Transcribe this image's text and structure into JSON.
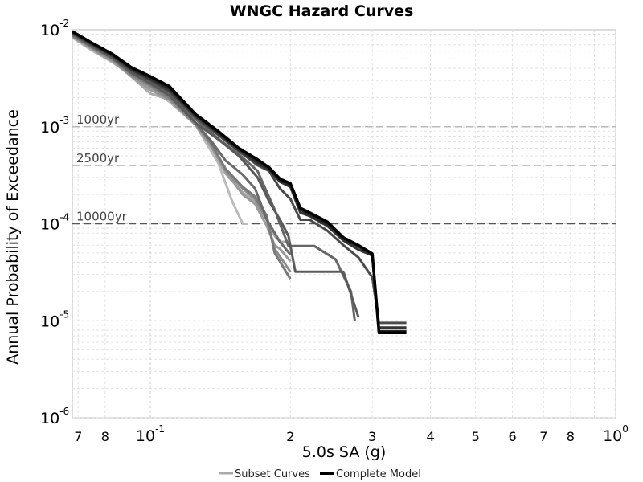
{
  "chart_data": {
    "type": "line",
    "title": "WNGC Hazard Curves",
    "xlabel": "5.0s SA (g)",
    "ylabel": "Annual Probability of Exceedance",
    "x_scale": "log",
    "y_scale": "log",
    "xlim": [
      0.068,
      1.0
    ],
    "ylim": [
      1e-06,
      0.01
    ],
    "grid": true,
    "legend_position": "bottom",
    "x_ticks": [
      {
        "value": 0.07,
        "mant": "7",
        "exp": ""
      },
      {
        "value": 0.08,
        "mant": "8",
        "exp": ""
      },
      {
        "value": 0.1,
        "mant": "10",
        "exp": "-1"
      },
      {
        "value": 0.2,
        "mant": "2",
        "exp": ""
      },
      {
        "value": 0.3,
        "mant": "3",
        "exp": ""
      },
      {
        "value": 0.4,
        "mant": "4",
        "exp": ""
      },
      {
        "value": 0.5,
        "mant": "5",
        "exp": ""
      },
      {
        "value": 0.6,
        "mant": "6",
        "exp": ""
      },
      {
        "value": 0.7,
        "mant": "7",
        "exp": ""
      },
      {
        "value": 0.8,
        "mant": "8",
        "exp": ""
      },
      {
        "value": 1.0,
        "mant": "10",
        "exp": "0"
      }
    ],
    "y_ticks": [
      {
        "value": 0.01,
        "mant": "10",
        "exp": "-2"
      },
      {
        "value": 0.001,
        "mant": "10",
        "exp": "-3"
      },
      {
        "value": 0.0001,
        "mant": "10",
        "exp": "-4"
      },
      {
        "value": 1e-05,
        "mant": "10",
        "exp": "-5"
      },
      {
        "value": 1e-06,
        "mant": "10",
        "exp": "-6"
      }
    ],
    "reference_lines": [
      {
        "label": "1000yr",
        "y": 0.001,
        "color": "#b8b8b8"
      },
      {
        "label": "2500yr",
        "y": 0.0004,
        "color": "#888888"
      },
      {
        "label": "10000yr",
        "y": 0.0001,
        "color": "#555555"
      }
    ],
    "legend": [
      {
        "label": "Subset Curves",
        "color": "#aaaaaa"
      },
      {
        "label": "Complete Model",
        "color": "#000000"
      }
    ],
    "series": [
      {
        "color": "#bbbbbb",
        "width": 3,
        "x": [
          0.068,
          0.075,
          0.083,
          0.091,
          0.1,
          0.11,
          0.125,
          0.14,
          0.15,
          0.158,
          0.162
        ],
        "y": [
          0.0083,
          0.0061,
          0.0046,
          0.0034,
          0.0025,
          0.0018,
          0.00105,
          0.00042,
          0.00017,
          0.0001,
          0.0001
        ]
      },
      {
        "color": "#aaaaaa",
        "width": 3,
        "x": [
          0.068,
          0.075,
          0.083,
          0.091,
          0.1,
          0.11,
          0.125,
          0.135,
          0.145,
          0.158,
          0.168,
          0.178,
          0.185,
          0.19,
          0.2
        ],
        "y": [
          0.0086,
          0.0064,
          0.0048,
          0.0033,
          0.0022,
          0.0019,
          0.00105,
          0.00064,
          0.00033,
          0.00021,
          0.00017,
          0.00011,
          7.5e-05,
          6.5e-05,
          6.5e-05
        ]
      },
      {
        "color": "#999999",
        "width": 3,
        "x": [
          0.068,
          0.075,
          0.083,
          0.091,
          0.1,
          0.11,
          0.125,
          0.135,
          0.145,
          0.158,
          0.168,
          0.178,
          0.185,
          0.19,
          0.2
        ],
        "y": [
          0.0085,
          0.0063,
          0.0047,
          0.0033,
          0.0024,
          0.0019,
          0.00105,
          0.00063,
          0.00035,
          0.0002,
          0.00016,
          9.5e-05,
          6e-05,
          5.5e-05,
          4.1e-05
        ]
      },
      {
        "color": "#8c8c8c",
        "width": 3,
        "x": [
          0.068,
          0.075,
          0.083,
          0.091,
          0.1,
          0.11,
          0.125,
          0.135,
          0.145,
          0.158,
          0.168,
          0.178,
          0.185,
          0.2
        ],
        "y": [
          0.0088,
          0.0065,
          0.0049,
          0.0034,
          0.0026,
          0.0019,
          0.00106,
          0.0007,
          0.00036,
          0.00023,
          0.00018,
          0.00011,
          5.5e-05,
          3.2e-05
        ]
      },
      {
        "color": "#7a7a7a",
        "width": 3,
        "x": [
          0.068,
          0.075,
          0.083,
          0.091,
          0.1,
          0.11,
          0.125,
          0.135,
          0.145,
          0.158,
          0.168,
          0.178,
          0.185,
          0.2
        ],
        "y": [
          0.0087,
          0.0066,
          0.005,
          0.0035,
          0.0027,
          0.002,
          0.0011,
          0.00068,
          0.00037,
          0.00024,
          0.00019,
          0.00012,
          5e-05,
          2.7e-05
        ]
      },
      {
        "color": "#6a6a6a",
        "width": 3,
        "x": [
          0.068,
          0.075,
          0.083,
          0.091,
          0.1,
          0.11,
          0.125,
          0.135,
          0.145,
          0.158,
          0.168,
          0.178,
          0.19,
          0.2
        ],
        "y": [
          0.0089,
          0.0067,
          0.0051,
          0.0036,
          0.0028,
          0.0021,
          0.0011,
          0.00072,
          0.00045,
          0.00032,
          0.00023,
          0.00011,
          6.5e-05,
          4.8e-05
        ]
      },
      {
        "color": "#666666",
        "width": 3,
        "x": [
          0.068,
          0.075,
          0.083,
          0.091,
          0.1,
          0.11,
          0.125,
          0.14,
          0.155,
          0.17,
          0.185,
          0.198,
          0.21,
          0.225,
          0.25,
          0.27,
          0.275
        ],
        "y": [
          0.0092,
          0.0069,
          0.0052,
          0.0037,
          0.0029,
          0.0022,
          0.0012,
          0.00075,
          0.00052,
          0.00035,
          0.00014,
          5.9e-05,
          5.9e-05,
          5.9e-05,
          4.3e-05,
          2e-05,
          1e-05
        ]
      },
      {
        "color": "#5a5a5a",
        "width": 3,
        "x": [
          0.068,
          0.075,
          0.083,
          0.091,
          0.1,
          0.11,
          0.125,
          0.14,
          0.155,
          0.17,
          0.18,
          0.19,
          0.198,
          0.205,
          0.23,
          0.25,
          0.26,
          0.28
        ],
        "y": [
          0.0091,
          0.0068,
          0.0051,
          0.0036,
          0.0028,
          0.0021,
          0.0011,
          0.00074,
          0.0005,
          0.0003,
          0.00017,
          0.00011,
          7.5e-05,
          3.2e-05,
          3.2e-05,
          3.2e-05,
          3.2e-05,
          1.1e-05
        ]
      },
      {
        "color": "#4a4a4a",
        "width": 3,
        "x": [
          0.068,
          0.075,
          0.083,
          0.091,
          0.1,
          0.11,
          0.125,
          0.14,
          0.155,
          0.17,
          0.18,
          0.19,
          0.2,
          0.21,
          0.22,
          0.24,
          0.26,
          0.28,
          0.3,
          0.31,
          0.33,
          0.355
        ],
        "y": [
          0.0093,
          0.007,
          0.0053,
          0.0038,
          0.003,
          0.0023,
          0.00125,
          0.00082,
          0.00056,
          0.0004,
          0.00035,
          0.00023,
          0.00018,
          0.00011,
          0.00011,
          8.5e-05,
          6e-05,
          4.5e-05,
          2.8e-05,
          9.5e-06,
          9.5e-06,
          9.5e-06
        ]
      },
      {
        "color": "#333333",
        "width": 3,
        "x": [
          0.068,
          0.075,
          0.083,
          0.091,
          0.1,
          0.11,
          0.125,
          0.14,
          0.155,
          0.17,
          0.18,
          0.19,
          0.2,
          0.21,
          0.22,
          0.24,
          0.26,
          0.28,
          0.3,
          0.31,
          0.33,
          0.355
        ],
        "y": [
          0.0094,
          0.0071,
          0.0054,
          0.0039,
          0.0031,
          0.0024,
          0.0013,
          0.00085,
          0.00057,
          0.00042,
          0.00036,
          0.00027,
          0.00024,
          0.00013,
          0.00012,
          9.5e-05,
          6.7e-05,
          5.4e-05,
          4.7e-05,
          8.5e-06,
          8.5e-06,
          8.5e-06
        ]
      },
      {
        "color": "#222222",
        "width": 3,
        "x": [
          0.068,
          0.075,
          0.083,
          0.091,
          0.1,
          0.11,
          0.125,
          0.14,
          0.155,
          0.17,
          0.18,
          0.19,
          0.2,
          0.21,
          0.22,
          0.24,
          0.26,
          0.28,
          0.3,
          0.31,
          0.33,
          0.355
        ],
        "y": [
          0.0095,
          0.0072,
          0.0055,
          0.004,
          0.0032,
          0.0025,
          0.00132,
          0.00088,
          0.00059,
          0.00044,
          0.00037,
          0.00028,
          0.00025,
          0.00014,
          0.000125,
          0.0001,
          7e-05,
          5.8e-05,
          4.8e-05,
          7.8e-06,
          7.8e-06,
          7.8e-06
        ]
      },
      {
        "color": "#000000",
        "width": 3.5,
        "x": [
          0.068,
          0.075,
          0.083,
          0.091,
          0.1,
          0.11,
          0.125,
          0.14,
          0.155,
          0.17,
          0.18,
          0.19,
          0.2,
          0.21,
          0.22,
          0.24,
          0.26,
          0.28,
          0.3,
          0.31,
          0.33,
          0.355
        ],
        "y": [
          0.0096,
          0.0073,
          0.0056,
          0.0041,
          0.0033,
          0.0026,
          0.00135,
          0.0009,
          0.0006,
          0.00046,
          0.00038,
          0.00029,
          0.00026,
          0.000145,
          0.00013,
          0.000105,
          7.2e-05,
          6e-05,
          4.9e-05,
          7.5e-06,
          7.5e-06,
          7.5e-06
        ]
      }
    ]
  }
}
